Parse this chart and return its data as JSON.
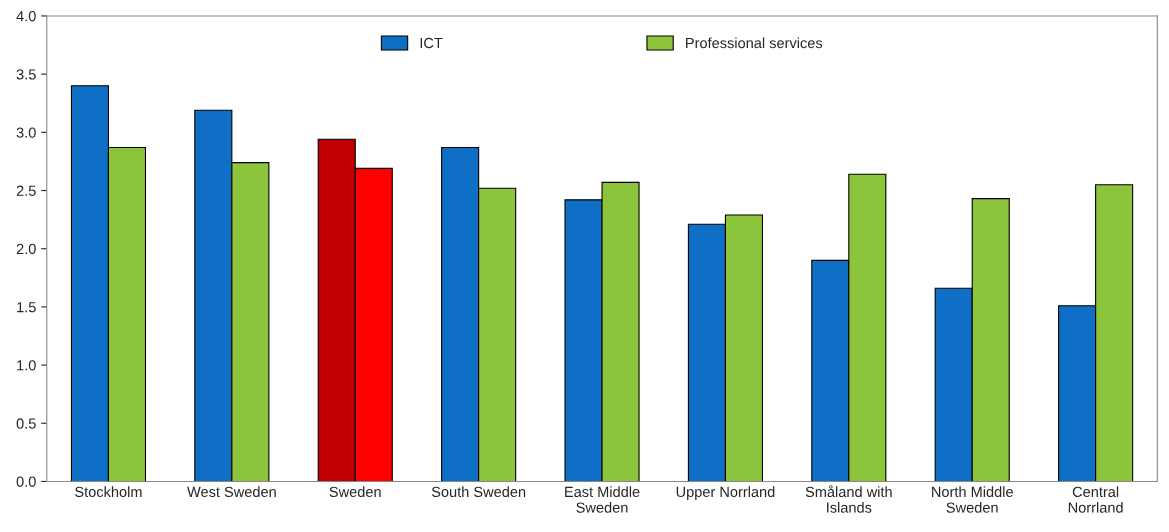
{
  "chart_data": {
    "type": "bar",
    "categories": [
      "Stockholm",
      "West Sweden",
      "Sweden",
      "South Sweden",
      "East Middle\nSweden",
      "Upper Norrland",
      "Småland with\nIslands",
      "North Middle\nSweden",
      "Central\nNorrland"
    ],
    "series": [
      {
        "name": "ICT",
        "color": "#0f6fc6",
        "colors": [
          "#0f6fc6",
          "#0f6fc6",
          "#c00000",
          "#0f6fc6",
          "#0f6fc6",
          "#0f6fc6",
          "#0f6fc6",
          "#0f6fc6",
          "#0f6fc6"
        ],
        "values": [
          3.4,
          3.19,
          2.94,
          2.87,
          2.42,
          2.21,
          1.9,
          1.66,
          1.51
        ]
      },
      {
        "name": "Professional services",
        "color": "#8cc43c",
        "colors": [
          "#8cc43c",
          "#8cc43c",
          "#ff0000",
          "#8cc43c",
          "#8cc43c",
          "#8cc43c",
          "#8cc43c",
          "#8cc43c",
          "#8cc43c"
        ],
        "values": [
          2.87,
          2.74,
          2.69,
          2.52,
          2.57,
          2.29,
          2.64,
          2.43,
          2.55
        ]
      }
    ],
    "ylim": [
      0,
      4
    ],
    "yticks": [
      {
        "value": 0,
        "label": "0.0"
      },
      {
        "value": 0.5,
        "label": "0.5"
      },
      {
        "value": 1,
        "label": "1.0"
      },
      {
        "value": 1.5,
        "label": "1.5"
      },
      {
        "value": 2,
        "label": "2.0"
      },
      {
        "value": 2.5,
        "label": "2.5"
      },
      {
        "value": 3,
        "label": "3.0"
      },
      {
        "value": 3.5,
        "label": "3.5"
      },
      {
        "value": 4,
        "label": "4.0"
      }
    ],
    "legend": "top",
    "grid": false
  }
}
